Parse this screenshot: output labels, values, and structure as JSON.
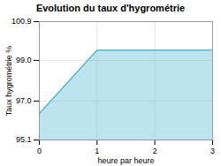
{
  "chart_data": {
    "type": "area",
    "title": "Evolution du taux d'hygrométrie",
    "xlabel": "heure par heure",
    "ylabel": "Taux hygrométrie %",
    "x": [
      0,
      1,
      3
    ],
    "values": [
      96.4,
      99.5,
      99.5
    ],
    "xlim": [
      0,
      3
    ],
    "ylim": [
      95.1,
      100.9
    ],
    "xticks": [
      0,
      1,
      2,
      3
    ],
    "yticks": [
      95.1,
      {
        "value": 97.0,
        "label": "97.0"
      },
      {
        "value": 99.0,
        "label": "99.0"
      },
      100.9
    ],
    "color": "#57b8d4",
    "grid": true
  }
}
